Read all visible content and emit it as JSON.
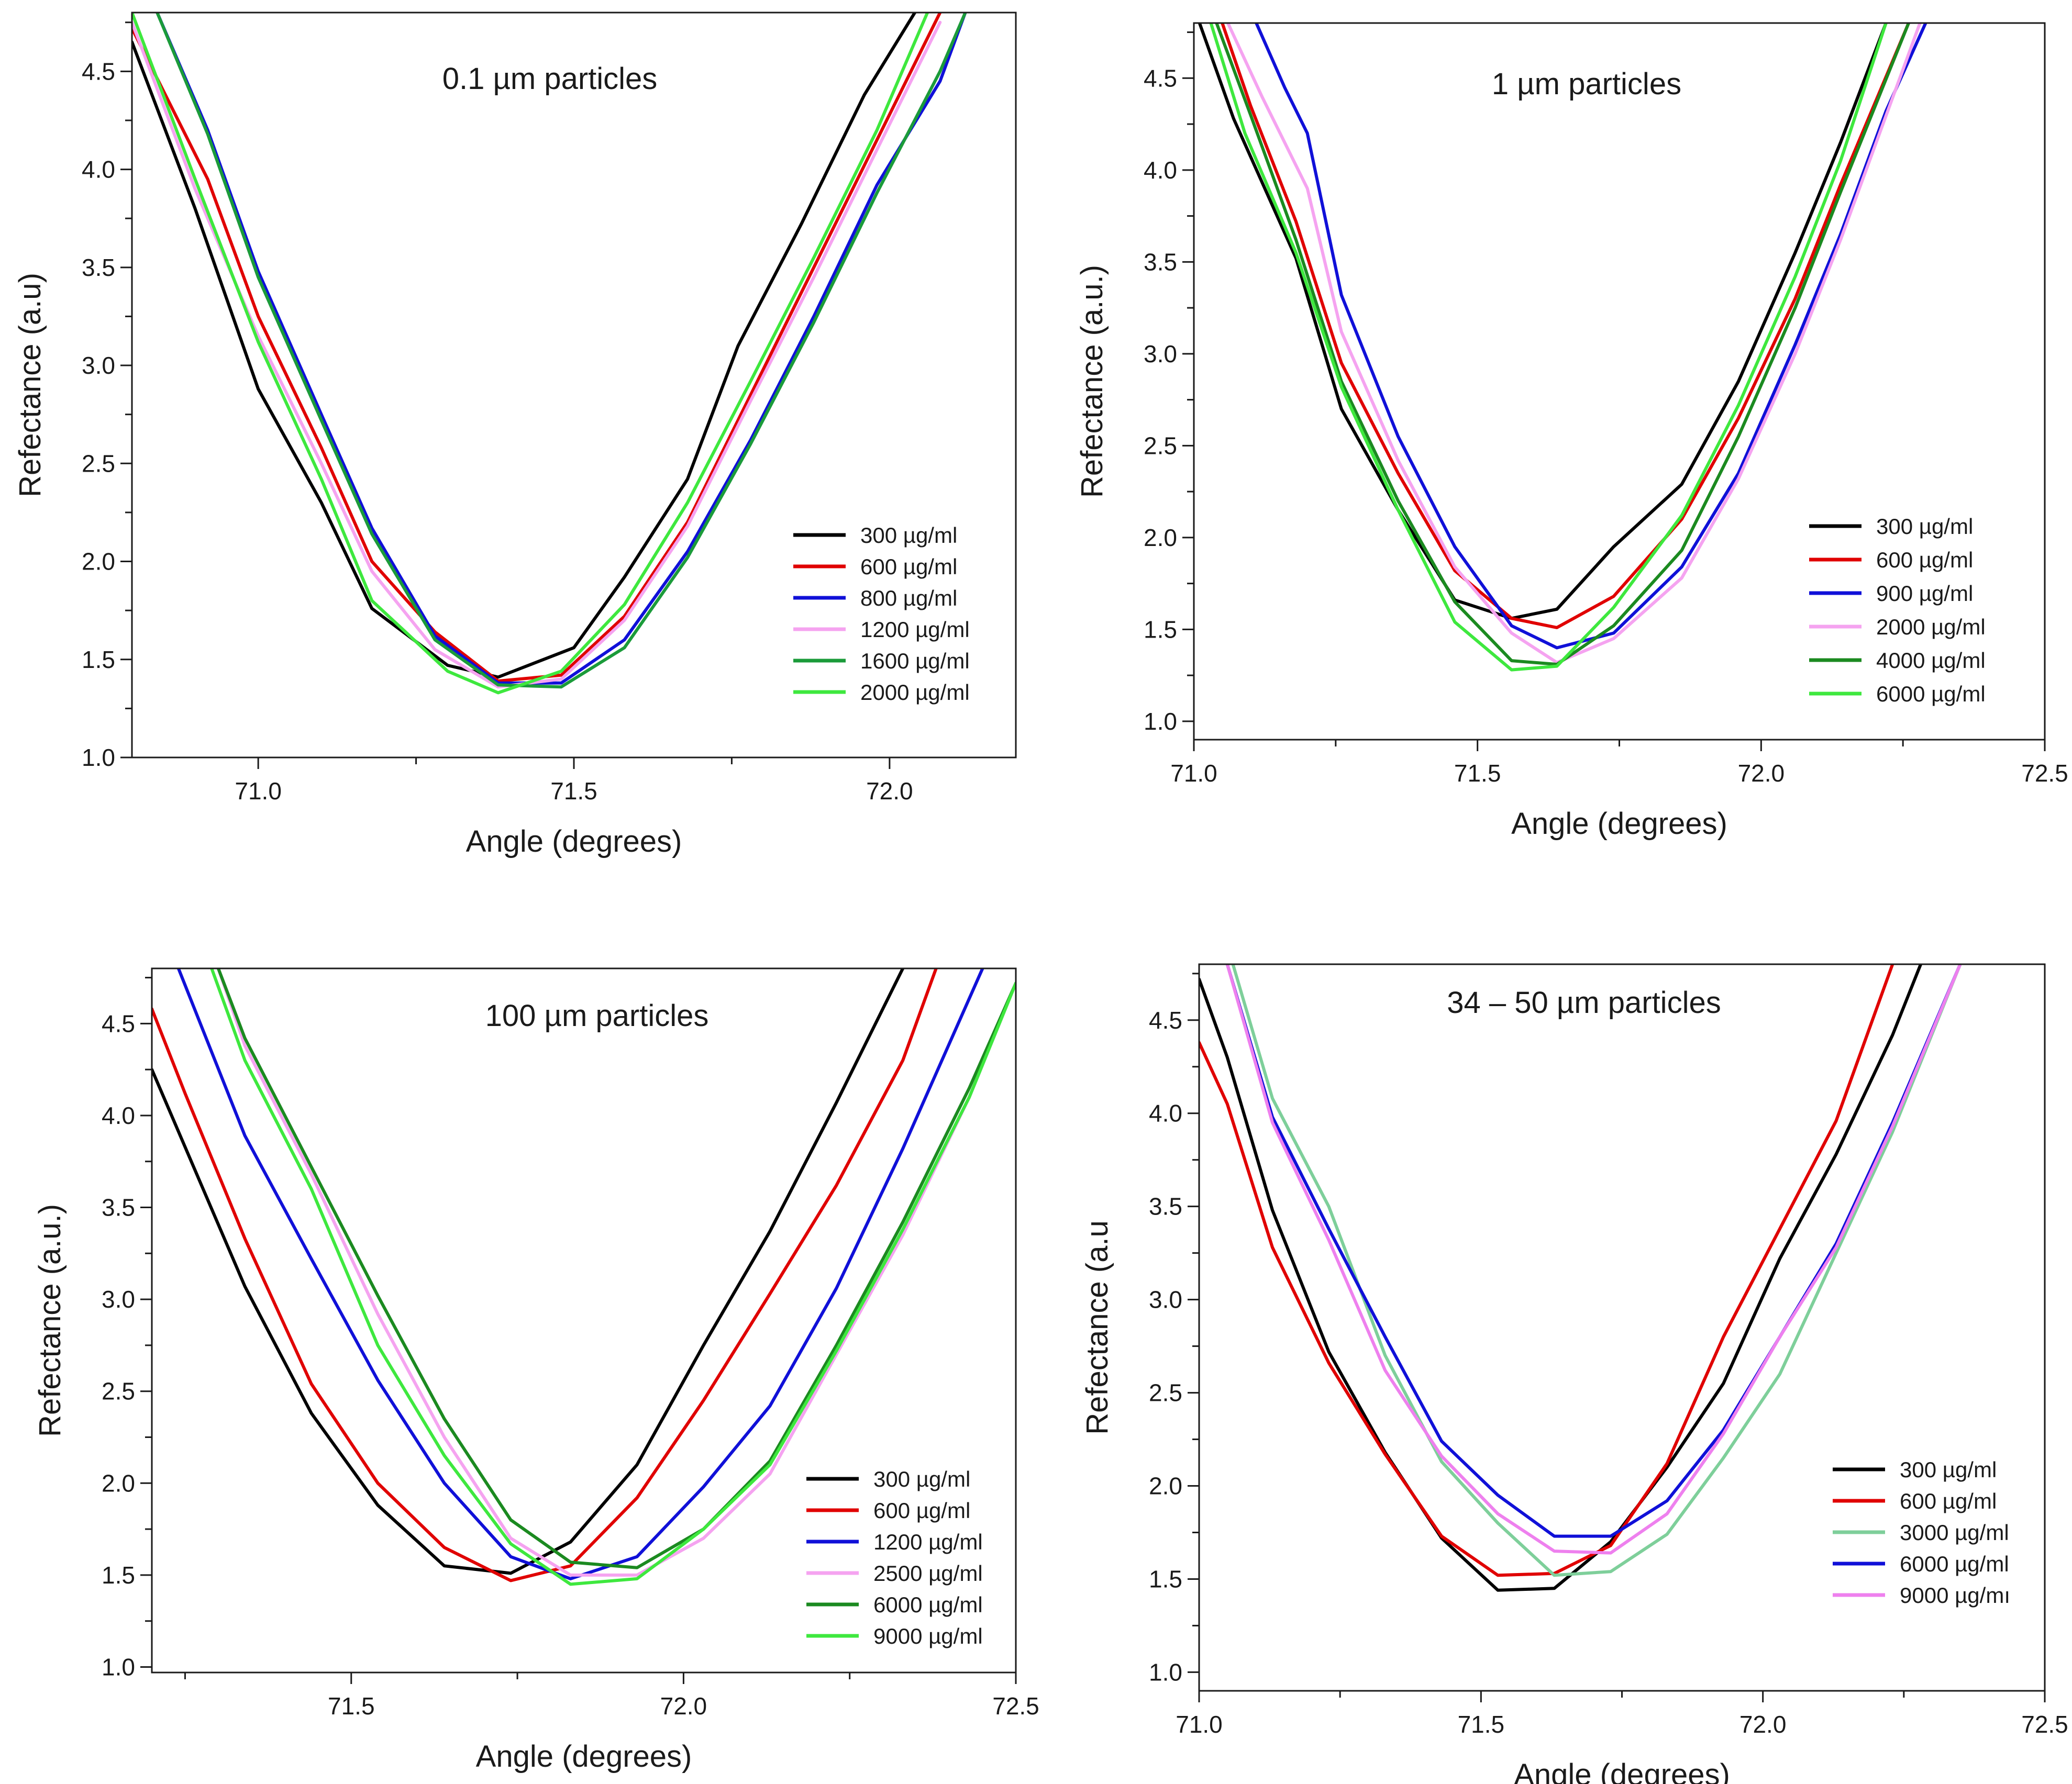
{
  "chart_data": [
    {
      "type": "line",
      "title": "0.1 µm particles",
      "xlabel": "Angle (degrees)",
      "ylabel": "Refectance (a.u)",
      "xlim": [
        70.8,
        72.2
      ],
      "ylim": [
        1.0,
        4.8
      ],
      "xticks": [
        71.0,
        71.5,
        72.0
      ],
      "xtick_labels": [
        "71.0",
        "71.5",
        "72.0"
      ],
      "yticks": [
        1.0,
        1.5,
        2.0,
        2.5,
        3.0,
        3.5,
        4.0,
        4.5
      ],
      "ytick_labels": [
        "1.0",
        "1.5",
        "2.0",
        "2.5",
        "3.0",
        "3.5",
        "4.0",
        "4.5"
      ],
      "legend_position": "bottom-right",
      "series": [
        {
          "name": "300   µg/ml",
          "color": "#000000",
          "x": [
            70.8,
            70.9,
            71.0,
            71.1,
            71.18,
            71.3,
            71.38,
            71.5,
            71.58,
            71.68,
            71.76,
            71.86,
            71.96,
            72.04
          ],
          "y": [
            4.65,
            3.8,
            2.88,
            2.3,
            1.76,
            1.47,
            1.41,
            1.56,
            1.92,
            2.42,
            3.1,
            3.72,
            4.38,
            4.8
          ]
        },
        {
          "name": "600   µg/ml",
          "color": "#e00000",
          "x": [
            70.8,
            70.92,
            71.0,
            71.1,
            71.18,
            71.28,
            71.38,
            71.48,
            71.58,
            71.68,
            71.78,
            71.88,
            71.98,
            72.08
          ],
          "y": [
            4.72,
            3.95,
            3.25,
            2.58,
            2.0,
            1.64,
            1.39,
            1.42,
            1.72,
            2.2,
            2.85,
            3.5,
            4.15,
            4.8
          ]
        },
        {
          "name": "800   µg/ml",
          "color": "#1010d8",
          "x": [
            70.84,
            70.92,
            71.0,
            71.1,
            71.18,
            71.28,
            71.38,
            71.48,
            71.58,
            71.68,
            71.78,
            71.88,
            71.98,
            72.08,
            72.12
          ],
          "y": [
            4.8,
            4.2,
            3.48,
            2.75,
            2.17,
            1.62,
            1.38,
            1.38,
            1.6,
            2.05,
            2.62,
            3.25,
            3.92,
            4.45,
            4.8
          ]
        },
        {
          "name": "1200 µg/ml",
          "color": "#f5a3f0",
          "x": [
            70.8,
            70.9,
            71.0,
            71.1,
            71.18,
            71.28,
            71.38,
            71.48,
            71.58,
            71.68,
            71.78,
            71.88,
            71.98,
            72.08
          ],
          "y": [
            4.75,
            3.9,
            3.15,
            2.5,
            1.95,
            1.55,
            1.36,
            1.4,
            1.7,
            2.18,
            2.82,
            3.45,
            4.1,
            4.75
          ]
        },
        {
          "name": "1600 µg/ml",
          "color": "#1b9b3a",
          "x": [
            70.84,
            70.92,
            71.0,
            71.1,
            71.18,
            71.28,
            71.38,
            71.48,
            71.58,
            71.68,
            71.78,
            71.88,
            71.98,
            72.08,
            72.12
          ],
          "y": [
            4.8,
            4.18,
            3.45,
            2.72,
            2.14,
            1.6,
            1.37,
            1.36,
            1.56,
            2.02,
            2.6,
            3.22,
            3.88,
            4.5,
            4.8
          ]
        },
        {
          "name": "2000 µg/ml",
          "color": "#3ee83e",
          "x": [
            70.8,
            70.9,
            71.0,
            71.1,
            71.18,
            71.3,
            71.38,
            71.48,
            71.58,
            71.68,
            71.78,
            71.88,
            71.98,
            72.06
          ],
          "y": [
            4.8,
            3.95,
            3.12,
            2.42,
            1.8,
            1.44,
            1.33,
            1.44,
            1.78,
            2.3,
            2.92,
            3.55,
            4.2,
            4.8
          ]
        }
      ]
    },
    {
      "type": "line",
      "title": "1 µm particles",
      "xlabel": "Angle (degrees)",
      "ylabel": "Refectance (a.u.)",
      "xlim": [
        71.0,
        72.5
      ],
      "ylim": [
        0.9,
        4.8
      ],
      "xticks": [
        71.0,
        71.5,
        72.0,
        72.5
      ],
      "xtick_labels": [
        "71.0",
        "71.5",
        "72.0",
        "72.5"
      ],
      "yticks": [
        1.0,
        1.5,
        2.0,
        2.5,
        3.0,
        3.5,
        4.0,
        4.5
      ],
      "ytick_labels": [
        "1.0",
        "1.5",
        "2.0",
        "2.5",
        "3.0",
        "3.5",
        "4.0",
        "4.5"
      ],
      "legend_position": "bottom-right",
      "series": [
        {
          "name": "300   µg/ml",
          "color": "#000000",
          "x": [
            71.01,
            71.07,
            71.18,
            71.26,
            71.36,
            71.46,
            71.56,
            71.64,
            71.74,
            71.86,
            71.96,
            72.06,
            72.14,
            72.22
          ],
          "y": [
            4.8,
            4.28,
            3.52,
            2.7,
            2.15,
            1.66,
            1.56,
            1.61,
            1.95,
            2.29,
            2.85,
            3.55,
            4.15,
            4.8
          ]
        },
        {
          "name": "600   µg/ml",
          "color": "#e00000",
          "x": [
            71.05,
            71.1,
            71.18,
            71.26,
            71.36,
            71.46,
            71.56,
            71.64,
            71.74,
            71.86,
            71.96,
            72.06,
            72.14,
            72.26
          ],
          "y": [
            4.8,
            4.35,
            3.72,
            2.95,
            2.35,
            1.82,
            1.56,
            1.51,
            1.68,
            2.1,
            2.65,
            3.3,
            3.92,
            4.8
          ]
        },
        {
          "name": "900   µg/ml",
          "color": "#1010d8",
          "x": [
            71.11,
            71.16,
            71.2,
            71.26,
            71.36,
            71.46,
            71.56,
            71.64,
            71.74,
            71.86,
            71.96,
            72.06,
            72.14,
            72.22,
            72.29
          ],
          "y": [
            4.8,
            4.45,
            4.2,
            3.32,
            2.55,
            1.95,
            1.52,
            1.4,
            1.48,
            1.84,
            2.35,
            3.05,
            3.65,
            4.32,
            4.8
          ]
        },
        {
          "name": "2000 µg/ml",
          "color": "#f5a3f0",
          "x": [
            71.06,
            71.12,
            71.2,
            71.26,
            71.36,
            71.46,
            71.56,
            71.64,
            71.74,
            71.86,
            71.96,
            72.06,
            72.14,
            72.28
          ],
          "y": [
            4.8,
            4.4,
            3.9,
            3.12,
            2.42,
            1.84,
            1.48,
            1.32,
            1.45,
            1.78,
            2.32,
            3.0,
            3.62,
            4.8
          ]
        },
        {
          "name": "4000 µg/ml",
          "color": "#1b8a20",
          "x": [
            71.04,
            71.1,
            71.18,
            71.26,
            71.36,
            71.46,
            71.56,
            71.64,
            71.74,
            71.86,
            71.96,
            72.06,
            72.14,
            72.26
          ],
          "y": [
            4.8,
            4.3,
            3.62,
            2.85,
            2.2,
            1.65,
            1.33,
            1.31,
            1.52,
            1.93,
            2.55,
            3.25,
            3.88,
            4.8
          ]
        },
        {
          "name": "6000    µg/ml",
          "color": "#3ee83e",
          "x": [
            71.03,
            71.09,
            71.18,
            71.26,
            71.36,
            71.46,
            71.56,
            71.64,
            71.74,
            71.86,
            71.96,
            72.06,
            72.14,
            72.22
          ],
          "y": [
            4.8,
            4.2,
            3.55,
            2.82,
            2.15,
            1.54,
            1.28,
            1.3,
            1.62,
            2.12,
            2.72,
            3.42,
            4.05,
            4.8
          ]
        }
      ]
    },
    {
      "type": "line",
      "title": "100 µm particles",
      "xlabel": "Angle (degrees)",
      "ylabel": "Refectance (a.u.)",
      "xlim": [
        71.2,
        72.5
      ],
      "ylim": [
        0.97,
        4.8
      ],
      "xticks": [
        71.5,
        72.0,
        72.5
      ],
      "xtick_labels": [
        "71.5",
        "72.0",
        "72.5"
      ],
      "yticks": [
        1.0,
        1.5,
        2.0,
        2.5,
        3.0,
        3.5,
        4.0,
        4.5
      ],
      "ytick_labels": [
        "1.0",
        "1.5",
        "2.0",
        "2.5",
        "3.0",
        "3.5",
        "4.0",
        "4.5"
      ],
      "legend_position": "bottom-right",
      "series": [
        {
          "name": "300   µg/ml",
          "color": "#000000",
          "x": [
            71.2,
            71.34,
            71.44,
            71.54,
            71.64,
            71.74,
            71.83,
            71.93,
            72.03,
            72.13,
            72.23,
            72.33
          ],
          "y": [
            4.25,
            3.07,
            2.38,
            1.88,
            1.55,
            1.51,
            1.68,
            2.1,
            2.75,
            3.37,
            4.07,
            4.8
          ]
        },
        {
          "name": "600   µg/ml",
          "color": "#e00000",
          "x": [
            71.2,
            71.25,
            71.34,
            71.44,
            71.54,
            71.64,
            71.74,
            71.83,
            71.93,
            72.03,
            72.13,
            72.23,
            72.33,
            72.38
          ],
          "y": [
            4.58,
            4.12,
            3.33,
            2.54,
            2.0,
            1.65,
            1.47,
            1.55,
            1.92,
            2.45,
            3.03,
            3.62,
            4.3,
            4.8
          ]
        },
        {
          "name": "1200 µg/ml",
          "color": "#1010d8",
          "x": [
            71.24,
            71.34,
            71.44,
            71.54,
            71.64,
            71.74,
            71.83,
            71.93,
            72.03,
            72.13,
            72.23,
            72.33,
            72.45
          ],
          "y": [
            4.8,
            3.89,
            3.22,
            2.56,
            2.0,
            1.6,
            1.48,
            1.6,
            1.98,
            2.42,
            3.06,
            3.82,
            4.8
          ]
        },
        {
          "name": "2500 µg/ml",
          "color": "#f5a3f0",
          "x": [
            71.3,
            71.34,
            71.44,
            71.54,
            71.64,
            71.74,
            71.83,
            71.93,
            72.03,
            72.13,
            72.23,
            72.33,
            72.43,
            72.5
          ],
          "y": [
            4.8,
            4.38,
            3.68,
            2.92,
            2.25,
            1.7,
            1.5,
            1.5,
            1.7,
            2.05,
            2.7,
            3.35,
            4.1,
            4.72
          ]
        },
        {
          "name": "6000 µg/ml",
          "color": "#1b8a20",
          "x": [
            71.3,
            71.34,
            71.44,
            71.54,
            71.64,
            71.74,
            71.83,
            71.93,
            72.03,
            72.13,
            72.23,
            72.33,
            72.43,
            72.5
          ],
          "y": [
            4.8,
            4.42,
            3.72,
            3.02,
            2.35,
            1.8,
            1.57,
            1.54,
            1.75,
            2.12,
            2.75,
            3.42,
            4.15,
            4.72
          ]
        },
        {
          "name": "9000 µg/ml",
          "color": "#3ee83e",
          "x": [
            71.29,
            71.34,
            71.44,
            71.54,
            71.64,
            71.74,
            71.83,
            71.93,
            72.03,
            72.13,
            72.23,
            72.33,
            72.43,
            72.5
          ],
          "y": [
            4.8,
            4.3,
            3.6,
            2.75,
            2.15,
            1.67,
            1.45,
            1.48,
            1.75,
            2.1,
            2.72,
            3.38,
            4.1,
            4.72
          ]
        }
      ]
    },
    {
      "type": "line",
      "title": "34 – 50 µm particles",
      "xlabel": "Angle (degrees)",
      "ylabel": "Refectance (a.u",
      "xlim": [
        71.0,
        72.5
      ],
      "ylim": [
        0.9,
        4.8
      ],
      "xticks": [
        71.0,
        71.5,
        72.0,
        72.5
      ],
      "xtick_labels": [
        "71.0",
        "71.5",
        "72.0",
        "72.5"
      ],
      "yticks": [
        1.0,
        1.5,
        2.0,
        2.5,
        3.0,
        3.5,
        4.0,
        4.5
      ],
      "ytick_labels": [
        "1.0",
        "1.5",
        "2.0",
        "2.5",
        "3.0",
        "3.5",
        "4.0",
        "4.5"
      ],
      "legend_position": "bottom-right",
      "series": [
        {
          "name": "300    µg/ml",
          "color": "#000000",
          "x": [
            71.0,
            71.05,
            71.13,
            71.23,
            71.33,
            71.43,
            71.53,
            71.63,
            71.73,
            71.83,
            71.93,
            72.03,
            72.13,
            72.23,
            72.28
          ],
          "y": [
            4.72,
            4.3,
            3.48,
            2.72,
            2.18,
            1.72,
            1.44,
            1.45,
            1.7,
            2.1,
            2.55,
            3.22,
            3.78,
            4.42,
            4.8
          ]
        },
        {
          "name": "600    µg/ml",
          "color": "#e00000",
          "x": [
            71.0,
            71.05,
            71.13,
            71.23,
            71.33,
            71.43,
            71.53,
            71.63,
            71.73,
            71.83,
            71.93,
            72.03,
            72.13,
            72.23
          ],
          "y": [
            4.38,
            4.05,
            3.28,
            2.66,
            2.17,
            1.73,
            1.52,
            1.53,
            1.68,
            2.12,
            2.8,
            3.38,
            3.96,
            4.8
          ]
        },
        {
          "name": "3000 µg/ml",
          "color": "#7ecf9a",
          "x": [
            71.06,
            71.13,
            71.23,
            71.33,
            71.43,
            71.53,
            71.63,
            71.73,
            71.83,
            71.93,
            72.03,
            72.13,
            72.23,
            72.35
          ],
          "y": [
            4.8,
            4.08,
            3.5,
            2.7,
            2.13,
            1.8,
            1.52,
            1.54,
            1.74,
            2.15,
            2.6,
            3.25,
            3.9,
            4.8
          ]
        },
        {
          "name": "6000 µg/ml",
          "color": "#1010d8",
          "x": [
            71.05,
            71.13,
            71.23,
            71.33,
            71.43,
            71.53,
            71.63,
            71.73,
            71.83,
            71.93,
            72.03,
            72.13,
            72.23,
            72.35
          ],
          "y": [
            4.8,
            3.98,
            3.38,
            2.8,
            2.24,
            1.95,
            1.73,
            1.73,
            1.92,
            2.3,
            2.8,
            3.3,
            3.95,
            4.8
          ]
        },
        {
          "name": "9000 µg/mı",
          "color": "#ee80ee",
          "x": [
            71.05,
            71.13,
            71.23,
            71.33,
            71.43,
            71.53,
            71.63,
            71.73,
            71.83,
            71.93,
            72.03,
            72.13,
            72.23,
            72.35
          ],
          "y": [
            4.8,
            3.95,
            3.32,
            2.62,
            2.16,
            1.85,
            1.65,
            1.64,
            1.85,
            2.28,
            2.8,
            3.28,
            3.93,
            4.8
          ]
        }
      ]
    }
  ]
}
